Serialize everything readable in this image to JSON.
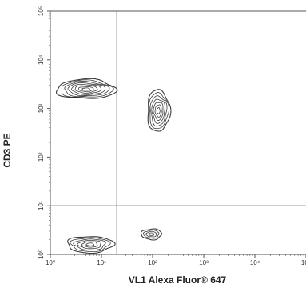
{
  "chart_data": {
    "type": "contour",
    "xlabel": "VL1 Alexa Fluor® 647",
    "ylabel": "CD3 PE",
    "x_scale": "log",
    "y_scale": "log",
    "xlim": [
      1,
      100000
    ],
    "ylim": [
      1,
      100000
    ],
    "x_ticks": [
      {
        "value": 1,
        "label": "10⁰"
      },
      {
        "value": 10,
        "label": "10¹"
      },
      {
        "value": 100,
        "label": "10²"
      },
      {
        "value": 1000,
        "label": "10³"
      },
      {
        "value": 10000,
        "label": "10⁴"
      },
      {
        "value": 100000,
        "label": "10⁵"
      }
    ],
    "y_ticks": [
      {
        "value": 1,
        "label": "10⁰"
      },
      {
        "value": 10,
        "label": "10¹"
      },
      {
        "value": 100,
        "label": "10²"
      },
      {
        "value": 1000,
        "label": "10³"
      },
      {
        "value": 10000,
        "label": "10⁴"
      },
      {
        "value": 100000,
        "label": "10⁵"
      }
    ],
    "gates": {
      "x_threshold": 20,
      "y_threshold": 10
    },
    "populations": [
      {
        "center": [
          5,
          2500
        ],
        "spread": [
          0.58,
          0.2
        ],
        "levels": 8
      },
      {
        "center": [
          130,
          900
        ],
        "spread": [
          0.22,
          0.43
        ],
        "levels": 7
      },
      {
        "center": [
          6,
          1.6
        ],
        "spread": [
          0.45,
          0.17
        ],
        "levels": 6
      },
      {
        "center": [
          95,
          2.6
        ],
        "spread": [
          0.2,
          0.11
        ],
        "levels": 4
      }
    ],
    "grid": false,
    "legend": "none",
    "colors": {
      "contour": "#1a1a1a",
      "gate_line": "#3a3a3a",
      "frame": "#555555"
    }
  }
}
